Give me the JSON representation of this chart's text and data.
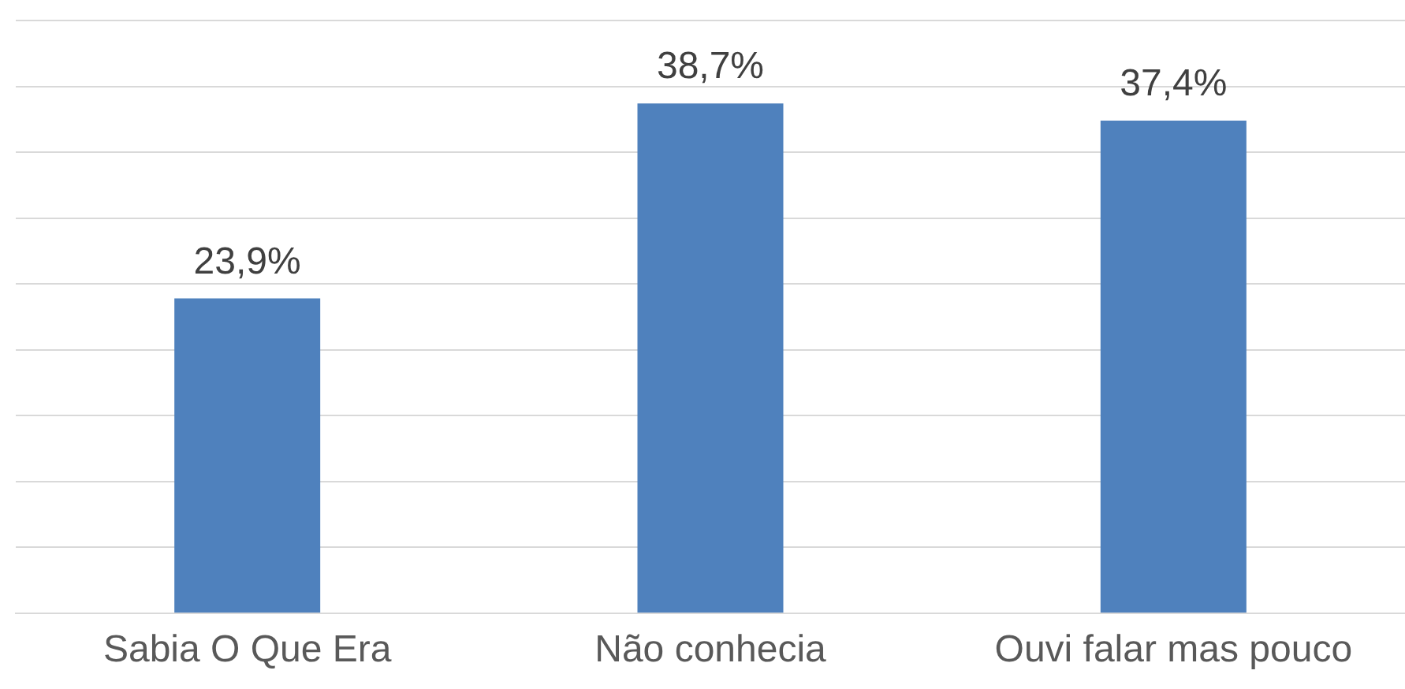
{
  "chart_data": {
    "type": "bar",
    "categories": [
      "Sabia O Que Era",
      "Não conhecia",
      "Ouvi falar mas pouco"
    ],
    "values": [
      23.9,
      38.7,
      37.4
    ],
    "color": "#4f81bd",
    "value_labels": [
      "23,9%",
      "38,7%",
      "37,4%"
    ],
    "ylim": [
      0,
      45
    ],
    "yticks": [
      {
        "value": 0,
        "label": null
      },
      {
        "value": 5,
        "label": null
      },
      {
        "value": 10,
        "label": null
      },
      {
        "value": 15,
        "label": null
      },
      {
        "value": 20,
        "label": null
      },
      {
        "value": 25,
        "label": null
      },
      {
        "value": 30,
        "label": null
      },
      {
        "value": 35,
        "label": null
      },
      {
        "value": 40,
        "label": null
      },
      {
        "value": 45,
        "label": null
      }
    ],
    "grid": "y",
    "tick_labels": "x"
  }
}
